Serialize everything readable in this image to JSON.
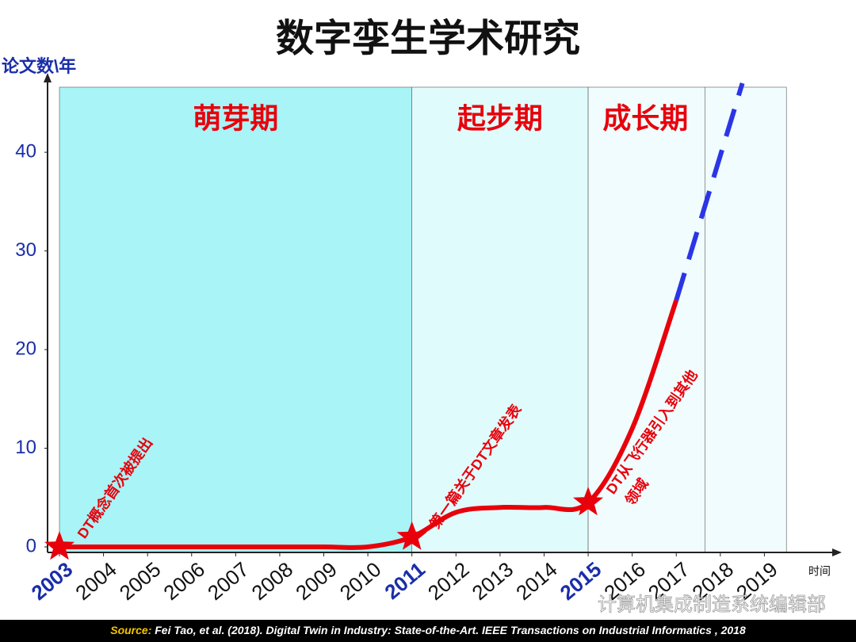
{
  "chart_data": {
    "type": "line",
    "title": "数字孪生学术研究",
    "y_label": "论文数\\年",
    "x_label": "时间",
    "xlim": [
      2003,
      2020
    ],
    "ylim": [
      0,
      47
    ],
    "xticks": [
      2003,
      2004,
      2005,
      2006,
      2007,
      2008,
      2009,
      2010,
      2011,
      2012,
      2013,
      2014,
      2015,
      2016,
      2017,
      2018,
      2019
    ],
    "xtick_highlight": [
      2003,
      2011,
      2015
    ],
    "highlight_color": "#1a2ea8",
    "yticks": [
      0,
      10,
      20,
      30,
      40
    ],
    "phases": [
      {
        "label": "萌芽期",
        "start": 2003,
        "end": 2011,
        "color": "#a8f4f7"
      },
      {
        "label": "起步期",
        "start": 2011,
        "end": 2015,
        "color": "#e0fbfc"
      },
      {
        "label": "成长期",
        "start": 2015,
        "end": 2019.5,
        "color": "#f0fcfd"
      }
    ],
    "series": [
      {
        "color": "#e8000b",
        "style": "solid",
        "x": [
          2003,
          2004,
          2005,
          2006,
          2007,
          2008,
          2009,
          2010,
          2011,
          2012,
          2013,
          2014,
          2015,
          2016,
          2017
        ],
        "values": [
          0,
          0,
          0,
          0,
          0,
          0,
          0,
          0,
          1,
          3.5,
          4,
          4,
          4.5,
          12,
          25
        ]
      },
      {
        "color": "#2b35e6",
        "style": "dashed",
        "x": [
          2017,
          2018.5
        ],
        "values": [
          25,
          47
        ]
      }
    ],
    "annotations": [
      {
        "lines": [
          "DT概念首次被提出"
        ],
        "x": 2003,
        "y": 0
      },
      {
        "lines": [
          "第一篇关于DT文章发表"
        ],
        "x": 2011,
        "y": 1
      },
      {
        "lines": [
          "DT从飞行器引入到其他",
          "领域"
        ],
        "x": 2015,
        "y": 4.5
      }
    ],
    "watermark": "计算机集成制造系统编辑部",
    "source": {
      "label": "Source:",
      "text": " Fei Tao, et al. (2018). Digital Twin in Industry: State-of-the-Art. IEEE Transactions on Industrial Informatics , 2018"
    }
  }
}
